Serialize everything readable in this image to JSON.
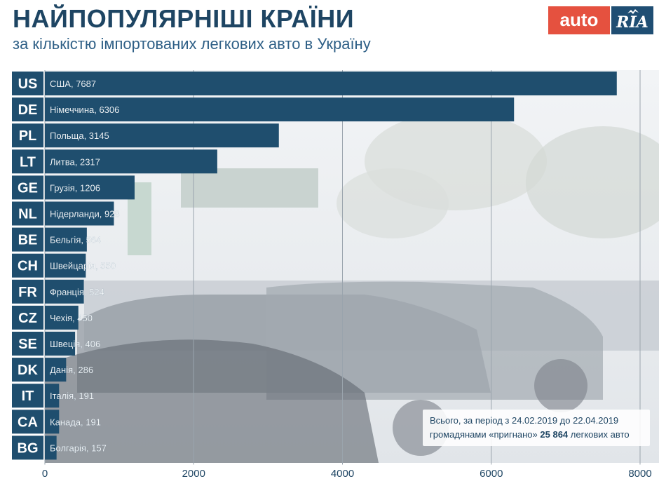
{
  "header": {
    "title": "НАЙПОПУЛЯРНІШІ КРАЇНИ",
    "subtitle": "за кількістю імпортованих легкових авто в Україну"
  },
  "logo": {
    "part1": "auto",
    "part2": "RIA"
  },
  "note": {
    "line1": "Всього, за період з 24.02.2019 до 22.04.2019",
    "line2_prefix": "громадянами «пригнано» ",
    "line2_total": "25 864",
    "line2_suffix": " легкових авто"
  },
  "colors": {
    "bar": "#1f4e6e",
    "code_box": "#1f4e6e",
    "title": "#1e4563",
    "brand_red": "#e5513f",
    "brand_blue": "#1f4e73"
  },
  "chart_data": {
    "type": "bar",
    "orientation": "horizontal",
    "title": "НАЙПОПУЛЯРНІШІ КРАЇНИ",
    "subtitle": "за кількістю імпортованих легкових авто в Україну",
    "xlim": [
      0,
      8000
    ],
    "xticks": [
      0,
      2000,
      4000,
      6000,
      8000
    ],
    "grid": true,
    "categories": [
      {
        "code": "US",
        "name": "США",
        "value": 7687
      },
      {
        "code": "DE",
        "name": "Німеччина",
        "value": 6306
      },
      {
        "code": "PL",
        "name": "Польща",
        "value": 3145
      },
      {
        "code": "LT",
        "name": "Литва",
        "value": 2317
      },
      {
        "code": "GE",
        "name": "Грузія",
        "value": 1206
      },
      {
        "code": "NL",
        "name": "Нідерланди",
        "value": 928
      },
      {
        "code": "BE",
        "name": "Бельгія",
        "value": 564
      },
      {
        "code": "CH",
        "name": "Швейцарія",
        "value": 550
      },
      {
        "code": "FR",
        "name": "Франція",
        "value": 524
      },
      {
        "code": "CZ",
        "name": "Чехія",
        "value": 450
      },
      {
        "code": "SE",
        "name": "Швеція",
        "value": 406
      },
      {
        "code": "DK",
        "name": "Данія",
        "value": 286
      },
      {
        "code": "IT",
        "name": "Італія",
        "value": 191
      },
      {
        "code": "CA",
        "name": "Канада",
        "value": 191
      },
      {
        "code": "BG",
        "name": "Болгарія",
        "value": 157
      }
    ]
  }
}
